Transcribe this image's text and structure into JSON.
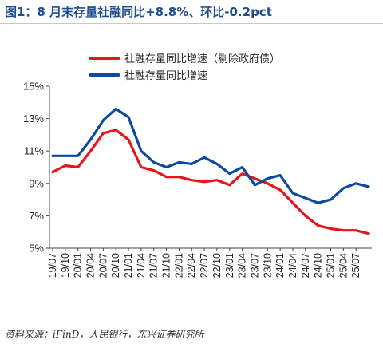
{
  "header": {
    "title": "图1：8 月末存量社融同比+8.8%、环比-0.2pct"
  },
  "source": "资料来源：iFinD，人民银行，东兴证券研究所",
  "colors": {
    "title": "#1f4f8f",
    "red": "#e8141b",
    "blue": "#0b4a9c"
  },
  "chart_data": {
    "type": "line",
    "title": "图1：8 月末存量社融同比+8.8%、环比-0.2pct",
    "ylim": [
      5,
      15
    ],
    "yticks": [
      "15%",
      "13%",
      "11%",
      "9%",
      "7%",
      "5%"
    ],
    "ytick_values": [
      15,
      13,
      11,
      9,
      7,
      5
    ],
    "grid": false,
    "legend": "top",
    "x": [
      "19/07",
      "19/10",
      "20/01",
      "20/04",
      "20/07",
      "20/10",
      "21/01",
      "21/04",
      "21/07",
      "21/10",
      "22/01",
      "22/04",
      "22/07",
      "22/10",
      "23/01",
      "23/04",
      "23/07",
      "23/10",
      "24/01",
      "24/04",
      "24/07",
      "24/10",
      "25/01",
      "25/04",
      "25/07",
      "25/08"
    ],
    "xtick_labels": [
      "19/07",
      "19/10",
      "20/01",
      "20/04",
      "20/07",
      "20/10",
      "21/01",
      "21/04",
      "21/07",
      "21/10",
      "22/01",
      "22/04",
      "22/07",
      "22/10",
      "23/01",
      "23/04",
      "23/07",
      "23/10",
      "24/01",
      "24/04",
      "24/07",
      "24/10",
      "25/01",
      "25/04",
      "25/07"
    ],
    "series": [
      {
        "name": "社融存量同比增速（剔除政府债）",
        "color": "#e8141b",
        "values": [
          9.7,
          10.1,
          10.0,
          11.0,
          12.1,
          12.3,
          11.7,
          10.0,
          9.8,
          9.4,
          9.4,
          9.2,
          9.1,
          9.2,
          8.9,
          9.6,
          9.3,
          9.0,
          8.6,
          7.8,
          7.0,
          6.4,
          6.2,
          6.1,
          6.1,
          5.9
        ]
      },
      {
        "name": "社融存量同比增速",
        "color": "#0b4a9c",
        "values": [
          10.7,
          10.7,
          10.7,
          11.7,
          12.9,
          13.6,
          13.1,
          11.0,
          10.3,
          10.0,
          10.3,
          10.2,
          10.6,
          10.2,
          9.6,
          10.0,
          8.9,
          9.3,
          9.5,
          8.4,
          8.1,
          7.8,
          8.0,
          8.7,
          9.0,
          8.8
        ]
      }
    ]
  }
}
